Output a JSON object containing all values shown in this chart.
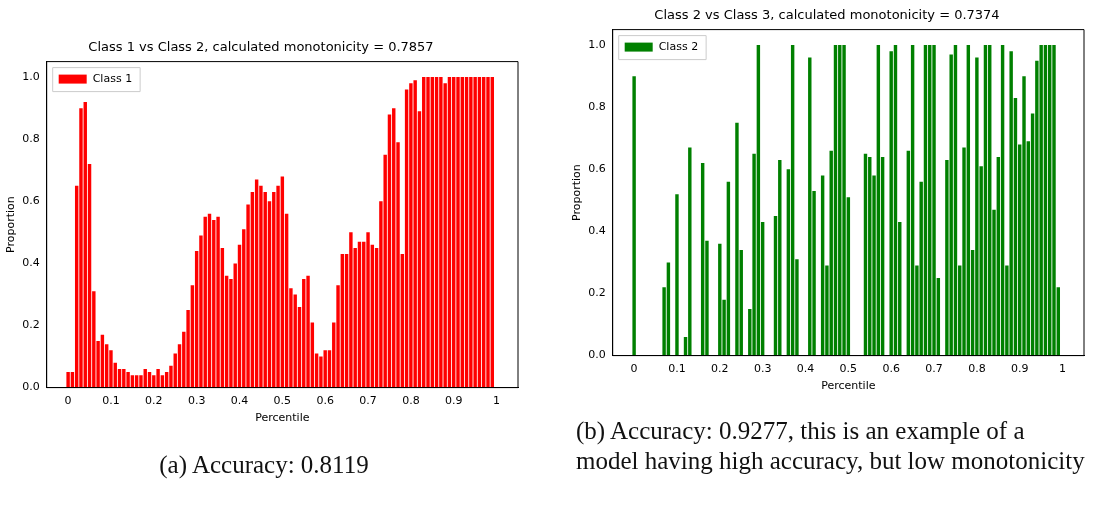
{
  "chart_data": [
    {
      "type": "bar",
      "title": "Class 1 vs Class 2, calculated monotonicity = 0.7857",
      "xlabel": "Percentile",
      "ylabel": "Proportion",
      "x": [
        0,
        0.01,
        0.02,
        0.03,
        0.04,
        0.05,
        0.06,
        0.07,
        0.08,
        0.09,
        0.1,
        0.11,
        0.12,
        0.13,
        0.14,
        0.15,
        0.16,
        0.17,
        0.18,
        0.19,
        0.2,
        0.21,
        0.22,
        0.23,
        0.24,
        0.25,
        0.26,
        0.27,
        0.28,
        0.29,
        0.3,
        0.31,
        0.32,
        0.33,
        0.34,
        0.35,
        0.36,
        0.37,
        0.38,
        0.39,
        0.4,
        0.41,
        0.42,
        0.43,
        0.44,
        0.45,
        0.46,
        0.47,
        0.48,
        0.49,
        0.5,
        0.51,
        0.52,
        0.53,
        0.54,
        0.55,
        0.56,
        0.57,
        0.58,
        0.59,
        0.6,
        0.61,
        0.62,
        0.63,
        0.64,
        0.65,
        0.66,
        0.67,
        0.68,
        0.69,
        0.7,
        0.71,
        0.72,
        0.73,
        0.74,
        0.75,
        0.76,
        0.77,
        0.78,
        0.79,
        0.8,
        0.81,
        0.82,
        0.83,
        0.84,
        0.85,
        0.86,
        0.87,
        0.88,
        0.89,
        0.9,
        0.91,
        0.92,
        0.93,
        0.94,
        0.95,
        0.96,
        0.97,
        0.98,
        0.99
      ],
      "series": [
        {
          "name": "Class 1",
          "color": "#ff0000",
          "values": [
            0.05,
            0.05,
            0.65,
            0.9,
            0.92,
            0.72,
            0.31,
            0.15,
            0.17,
            0.14,
            0.12,
            0.08,
            0.06,
            0.06,
            0.05,
            0.04,
            0.04,
            0.04,
            0.06,
            0.05,
            0.04,
            0.06,
            0.04,
            0.05,
            0.07,
            0.11,
            0.14,
            0.18,
            0.25,
            0.33,
            0.44,
            0.49,
            0.55,
            0.56,
            0.54,
            0.55,
            0.45,
            0.36,
            0.35,
            0.4,
            0.46,
            0.51,
            0.59,
            0.63,
            0.67,
            0.65,
            0.63,
            0.6,
            0.63,
            0.65,
            0.68,
            0.56,
            0.32,
            0.3,
            0.26,
            0.35,
            0.36,
            0.21,
            0.11,
            0.1,
            0.12,
            0.12,
            0.21,
            0.33,
            0.43,
            0.43,
            0.5,
            0.45,
            0.47,
            0.47,
            0.5,
            0.46,
            0.45,
            0.6,
            0.75,
            0.88,
            0.9,
            0.79,
            0.43,
            0.96,
            0.98,
            0.99,
            0.89,
            1,
            1,
            1,
            1,
            1,
            0.98,
            1,
            1,
            1,
            1,
            1,
            1,
            1,
            1,
            1,
            1,
            1
          ]
        }
      ],
      "xlim": [
        -0.05,
        1.05
      ],
      "xticks": [
        0,
        0.1,
        0.2,
        0.3,
        0.4,
        0.5,
        0.6,
        0.7,
        0.8,
        0.9,
        1
      ],
      "ylim": [
        0,
        1.05
      ],
      "yticks": [
        {
          "value": 0,
          "label": "0.0"
        },
        {
          "value": 0.2,
          "label": "0.2"
        },
        {
          "value": 0.4,
          "label": "0.4"
        },
        {
          "value": 0.6,
          "label": "0.6"
        },
        {
          "value": 0.8,
          "label": "0.8"
        },
        {
          "value": 1,
          "label": "1.0"
        }
      ],
      "legend": "top left",
      "annotations": [
        "(a) Accuracy: 0.8119"
      ]
    },
    {
      "type": "bar",
      "title": "Class 2 vs Class 3, calculated monotonicity = 0.7374",
      "xlabel": "Percentile",
      "ylabel": "Proportion",
      "x": [
        0,
        0.01,
        0.02,
        0.03,
        0.04,
        0.05,
        0.06,
        0.07,
        0.08,
        0.09,
        0.1,
        0.11,
        0.12,
        0.13,
        0.14,
        0.15,
        0.16,
        0.17,
        0.18,
        0.19,
        0.2,
        0.21,
        0.22,
        0.23,
        0.24,
        0.25,
        0.26,
        0.27,
        0.28,
        0.29,
        0.3,
        0.31,
        0.32,
        0.33,
        0.34,
        0.35,
        0.36,
        0.37,
        0.38,
        0.39,
        0.4,
        0.41,
        0.42,
        0.43,
        0.44,
        0.45,
        0.46,
        0.47,
        0.48,
        0.49,
        0.5,
        0.51,
        0.52,
        0.53,
        0.54,
        0.55,
        0.56,
        0.57,
        0.58,
        0.59,
        0.6,
        0.61,
        0.62,
        0.63,
        0.64,
        0.65,
        0.66,
        0.67,
        0.68,
        0.69,
        0.7,
        0.71,
        0.72,
        0.73,
        0.74,
        0.75,
        0.76,
        0.77,
        0.78,
        0.79,
        0.8,
        0.81,
        0.82,
        0.83,
        0.84,
        0.85,
        0.86,
        0.87,
        0.88,
        0.89,
        0.9,
        0.91,
        0.92,
        0.93,
        0.94,
        0.95,
        0.96,
        0.97,
        0.98,
        0.99
      ],
      "series": [
        {
          "name": "Class 2",
          "color": "#008000",
          "values": [
            0.9,
            0,
            0,
            0,
            0,
            0,
            0,
            0.22,
            0.3,
            0,
            0.52,
            0,
            0.06,
            0.67,
            0,
            0,
            0.62,
            0.37,
            0,
            0,
            0.36,
            0.18,
            0.56,
            0,
            0.75,
            0.34,
            0,
            0.15,
            0.65,
            1,
            0.43,
            0,
            0,
            0.45,
            0.63,
            0,
            0.6,
            1,
            0.31,
            0,
            0,
            0.96,
            0.53,
            0,
            0.58,
            0.29,
            0.66,
            1,
            1,
            1,
            0.51,
            0,
            0,
            0,
            0.65,
            0.64,
            0.58,
            1,
            0.64,
            0,
            0.98,
            1,
            0.43,
            0,
            0.66,
            1,
            0.29,
            0.56,
            1,
            1,
            1,
            0.25,
            0,
            0.63,
            0.97,
            1,
            0.29,
            0.67,
            1,
            0.34,
            0.96,
            0.61,
            1,
            1,
            0.47,
            0.64,
            1,
            0.29,
            0.98,
            0.83,
            0.68,
            0.9,
            0.69,
            0.78,
            0.95,
            1,
            1,
            1,
            1,
            0.22
          ]
        }
      ],
      "xlim": [
        -0.05,
        1.05
      ],
      "xticks": [
        0,
        0.1,
        0.2,
        0.3,
        0.4,
        0.5,
        0.6,
        0.7,
        0.8,
        0.9,
        1
      ],
      "ylim": [
        0,
        1.05
      ],
      "yticks": [
        {
          "value": 0,
          "label": "0.0"
        },
        {
          "value": 0.2,
          "label": "0.2"
        },
        {
          "value": 0.4,
          "label": "0.4"
        },
        {
          "value": 0.6,
          "label": "0.6"
        },
        {
          "value": 0.8,
          "label": "0.8"
        },
        {
          "value": 1,
          "label": "1.0"
        }
      ],
      "legend": "top left",
      "annotations": [
        "(b) Accuracy: 0.9277, this is an example of a model having high accuracy, but low monotonicity"
      ]
    }
  ]
}
